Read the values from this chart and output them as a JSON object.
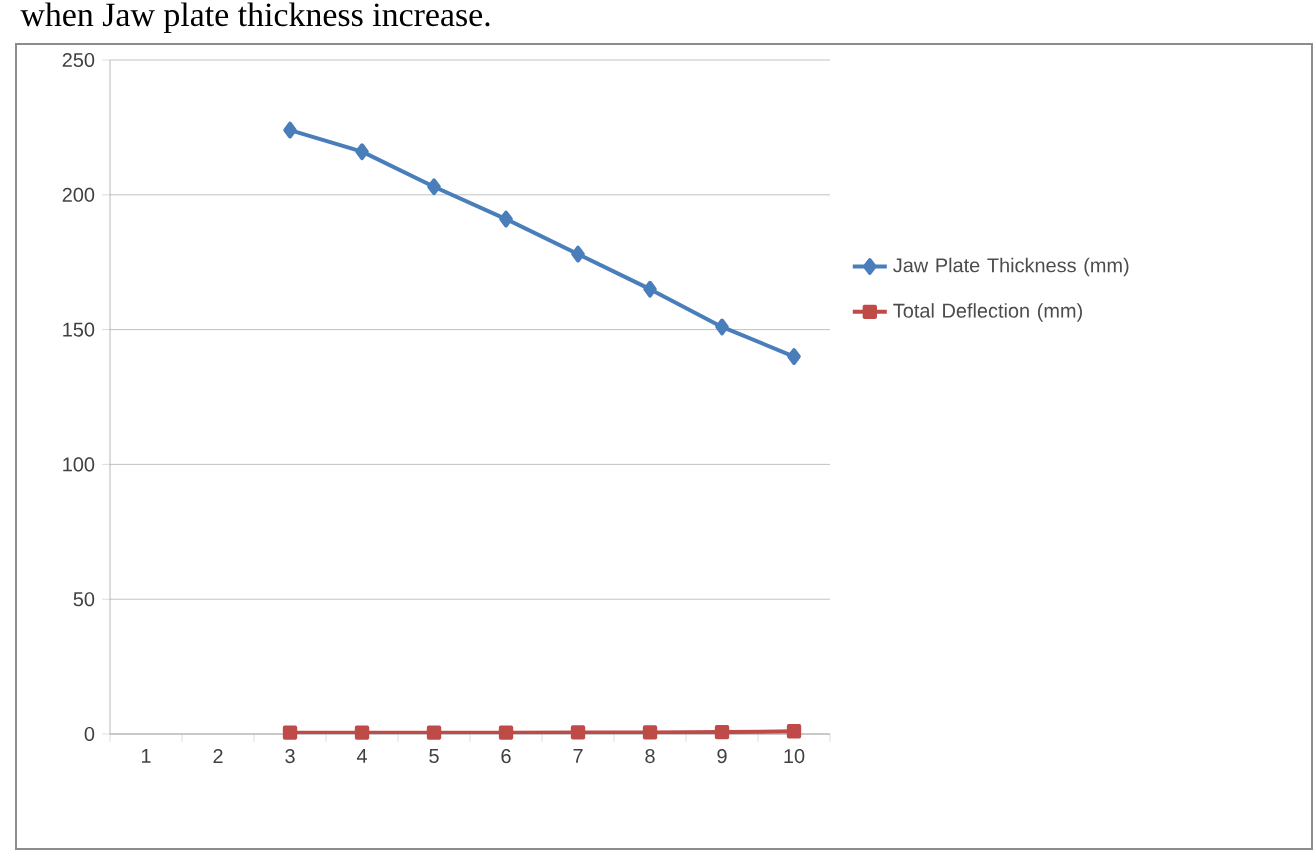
{
  "chart_data": {
    "type": "line",
    "annotations": [
      "when Jaw plate thickness increase."
    ],
    "categories": [
      "1",
      "2",
      "3",
      "4",
      "5",
      "6",
      "7",
      "8",
      "9",
      "10"
    ],
    "series": [
      {
        "name": "Jaw Plate Thickness (mm)",
        "color": "#4a7ebb",
        "marker": "diamond",
        "values": [
          null,
          null,
          224,
          216,
          203,
          191,
          178,
          165,
          151,
          140
        ]
      },
      {
        "name": "Total Deflection (mm)",
        "color": "#be4b48",
        "marker": "square",
        "values": [
          null,
          null,
          0.5,
          0.5,
          0.5,
          0.5,
          0.6,
          0.6,
          0.7,
          1
        ]
      }
    ],
    "ylim": [
      0,
      250
    ],
    "yticks": [
      0,
      50,
      100,
      150,
      200,
      250
    ],
    "grid": "y",
    "legend": "right"
  }
}
